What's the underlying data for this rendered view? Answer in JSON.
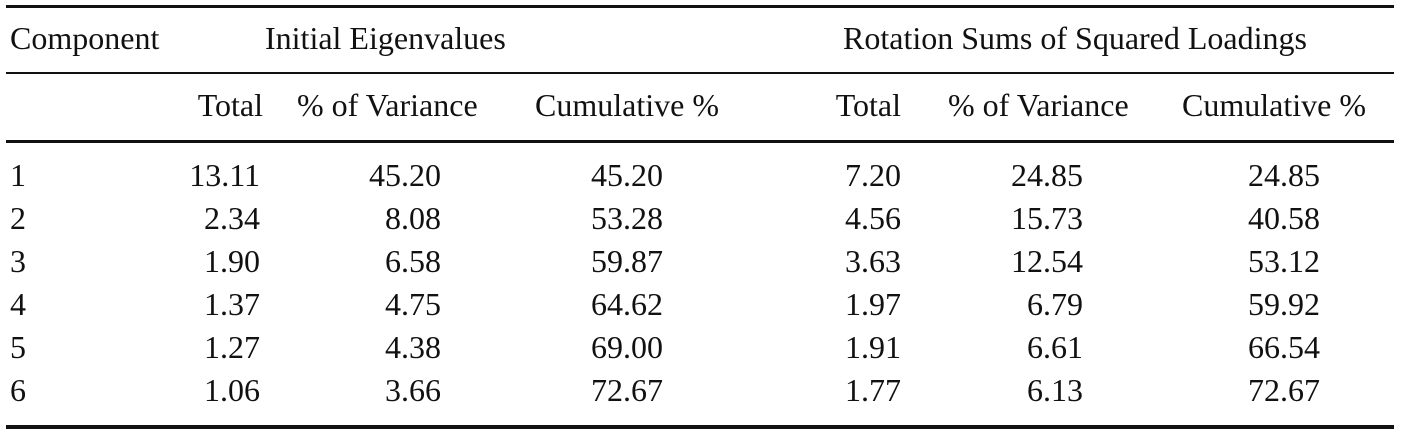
{
  "table": {
    "headers": {
      "component": "Component",
      "group_initial": "Initial Eigenvalues",
      "group_rotation": "Rotation Sums of Squared Loadings",
      "sub": [
        "Total",
        "% of Variance",
        "Cumulative %",
        "Total",
        "% of Variance",
        "Cumulative %"
      ]
    },
    "rows": [
      [
        "1",
        "13.11",
        "45.20",
        "45.20",
        "7.20",
        "24.85",
        "24.85"
      ],
      [
        "2",
        "2.34",
        "8.08",
        "53.28",
        "4.56",
        "15.73",
        "40.58"
      ],
      [
        "3",
        "1.90",
        "6.58",
        "59.87",
        "3.63",
        "12.54",
        "53.12"
      ],
      [
        "4",
        "1.37",
        "4.75",
        "64.62",
        "1.97",
        "6.79",
        "59.92"
      ],
      [
        "5",
        "1.27",
        "4.38",
        "69.00",
        "1.91",
        "6.61",
        "66.54"
      ],
      [
        "6",
        "1.06",
        "3.66",
        "72.67",
        "1.77",
        "6.13",
        "72.67"
      ]
    ]
  }
}
